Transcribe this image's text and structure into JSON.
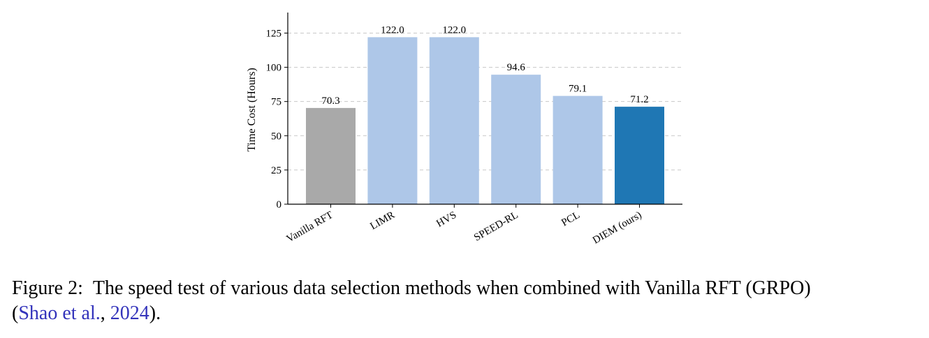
{
  "chart_data": {
    "type": "bar",
    "categories": [
      "Vanilla RFT",
      "LIMR",
      "HVS",
      "SPEED-RL",
      "PCL",
      "DIEM (ours)"
    ],
    "values": [
      70.3,
      122.0,
      122.0,
      94.6,
      79.1,
      71.2
    ],
    "value_labels": [
      "70.3",
      "122.0",
      "122.0",
      "94.6",
      "79.1",
      "71.2"
    ],
    "colors": [
      "#a9a9a9",
      "#aec7e8",
      "#aec7e8",
      "#aec7e8",
      "#aec7e8",
      "#1f77b4"
    ],
    "title": "",
    "xlabel": "",
    "ylabel": "Time Cost (Hours)",
    "ylim": [
      0,
      140
    ],
    "yticks": [
      0,
      25,
      50,
      75,
      100,
      125
    ],
    "ytick_labels": [
      "0",
      "25",
      "50",
      "75",
      "100",
      "125"
    ],
    "grid": "horizontal dashed",
    "legend": "none"
  },
  "caption": {
    "prefix": "Figure 2:",
    "text": "The speed test of various data selection methods when combined with Vanilla RFT (GRPO)",
    "open_paren": "(",
    "cite_authors": "Shao et al.",
    "cite_sep": ", ",
    "cite_year": "2024",
    "close": ")."
  }
}
